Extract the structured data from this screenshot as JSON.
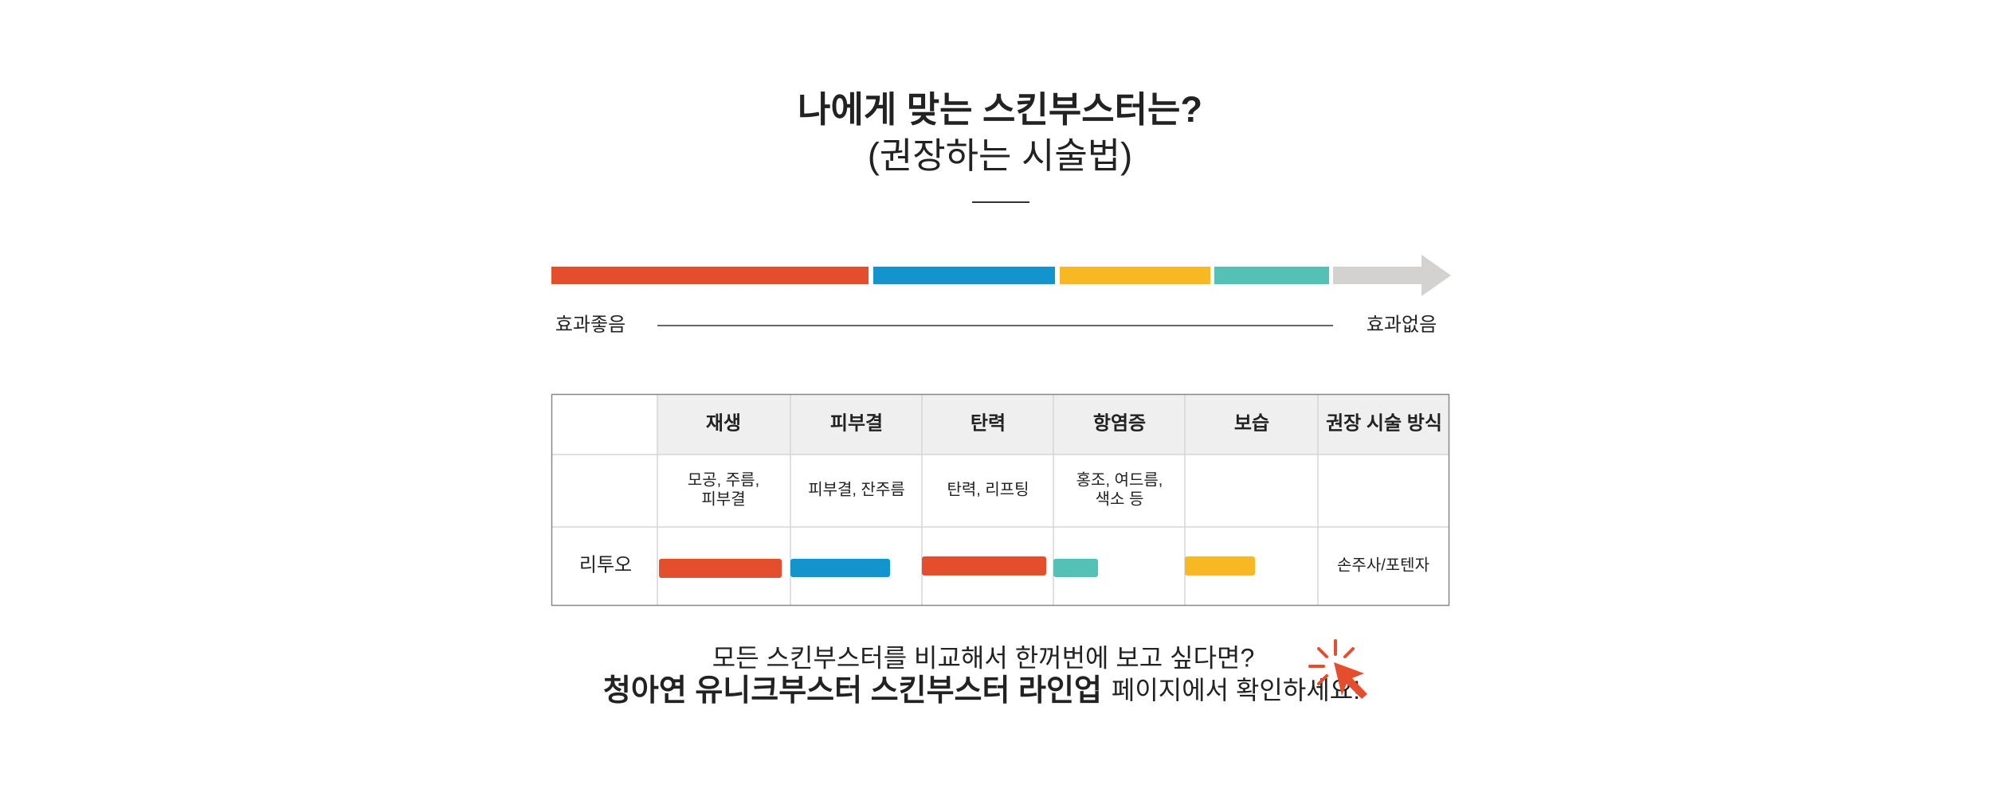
{
  "header": {
    "title": "나에게 맞는 스킨부스터는?",
    "subtitle": "(권장하는 시술법)"
  },
  "scale": {
    "left_label": "효과좋음",
    "right_label": "효과없음"
  },
  "table": {
    "headers": [
      "재생",
      "피부결",
      "탄력",
      "항염증",
      "보습",
      "권장 시술 방식"
    ],
    "effects": [
      [
        "모공, 주름,",
        "피부결"
      ],
      [
        "피부결, 잔주름"
      ],
      [
        "탄력, 리프팅"
      ],
      [
        "홍조, 여드름,",
        "색소 등"
      ]
    ],
    "row": {
      "name": "리투오",
      "method": "손주사/포텐자"
    }
  },
  "footer": {
    "question": "모든 스킨부스터를 비교해서 한꺼번에 보고 싶다면?",
    "highlight": "청아연 유니크부스터 스킨부스터 라인업",
    "tail": "페이지에서 확인하세요!"
  }
}
